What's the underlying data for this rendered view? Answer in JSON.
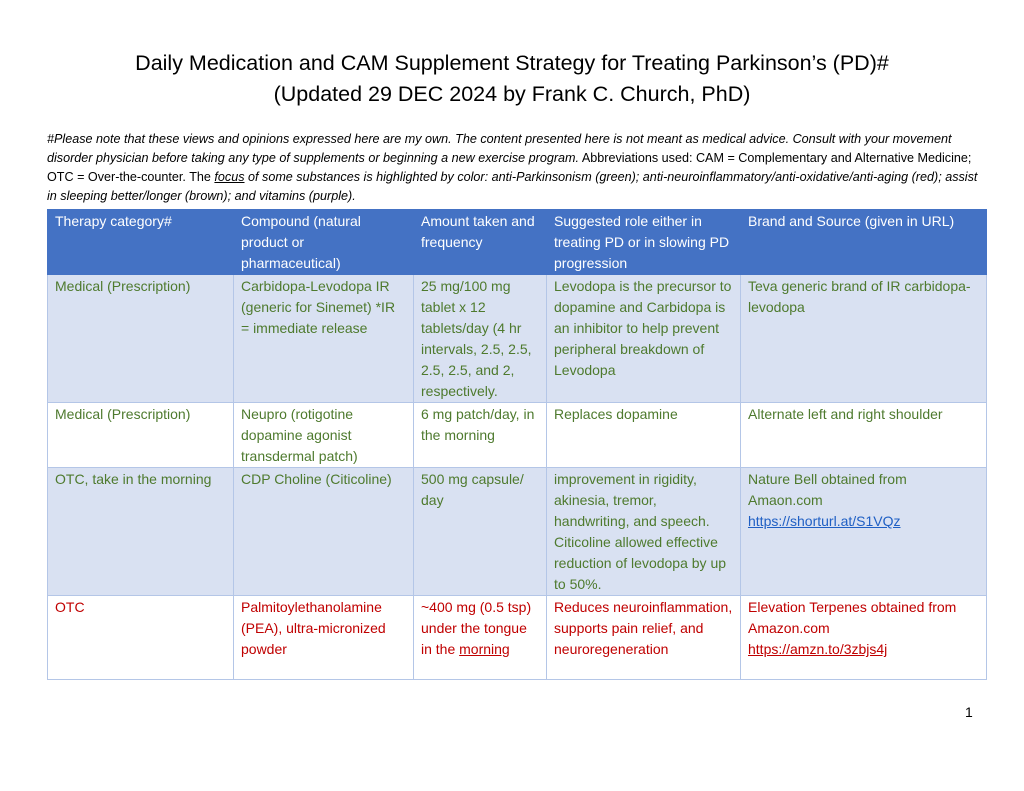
{
  "title": {
    "line1": "Daily Medication and CAM Supplement Strategy for Treating Parkinson’s (PD)#",
    "line2": "(Updated 29 DEC 2024 by Frank C. Church, PhD)"
  },
  "note": {
    "italic_part1": "#Please note that these views and opinions expressed here are my own. The content presented here is not meant as medical advice. Consult with your movement disorder physician before taking any type of supplements or beginning a new exercise program.",
    "plain_part": " Abbreviations used: CAM = Complementary and Alternative Medicine; OTC = Over-the-counter.  The ",
    "focus_word": "focus",
    "italic_part2": " of some substances is highlighted by color: anti-Parkinsonism (green); anti-neuroinflammatory/anti-oxidative/anti-aging (red); assist in sleeping better/longer (brown); and vitamins (purple)."
  },
  "colors": {
    "header_bg": "#4472c4",
    "row_shade": "#d9e1f2",
    "anti_parkinsonism": "#4e7a2e",
    "anti_neuroinflammatory": "#c00000",
    "link": "#1f5fc4"
  },
  "table": {
    "headers": [
      "Therapy category#",
      "Compound (natural product or pharmaceutical)",
      "Amount taken and frequency",
      "Suggested role either in treating PD or in slowing PD progression",
      "Brand and Source (given in URL)"
    ],
    "rows": [
      {
        "category": "Medical (Prescription)",
        "compound": "Carbidopa-Levodopa IR (generic for Sinemet) *IR = immediate release",
        "amount": "25 mg/100 mg tablet x 12 tablets/day (4 hr intervals, 2.5, 2.5, 2.5, 2.5, and 2, respectively.",
        "role": "Levodopa is the precursor to dopamine and Carbidopa is an inhibitor to help prevent peripheral breakdown of Levodopa",
        "brand": "Teva generic brand of IR carbidopa-levodopa",
        "link": ""
      },
      {
        "category": "Medical (Prescription)",
        "compound": "Neupro (rotigotine dopamine agonist transdermal patch)",
        "amount": "6 mg patch/day, in the morning",
        "role": "Replaces dopamine",
        "brand": "Alternate left and right shoulder",
        "link": ""
      },
      {
        "category": "OTC, take in the morning",
        "compound": "CDP Choline (Citicoline)",
        "amount": "500 mg capsule/ day",
        "role": "improvement in rigidity, akinesia, tremor, handwriting, and speech. Citicoline allowed effective reduction of levodopa by up to 50%.",
        "brand": "Nature Bell obtained from Amaon.com",
        "link": "https://shorturl.at/S1VQz"
      },
      {
        "category": "OTC",
        "compound": "Palmitoylethanolamine (PEA), ultra-micronized powder",
        "amount": "~400 mg (0.5 tsp) under the tongue in the",
        "amount_underlined": "morning",
        "role": "Reduces neuroinflammation, supports pain relief, and neuroregeneration",
        "brand": "Elevation Terpenes obtained from Amazon.com",
        "link": "https://amzn.to/3zbjs4j"
      }
    ]
  },
  "page_number": "1"
}
